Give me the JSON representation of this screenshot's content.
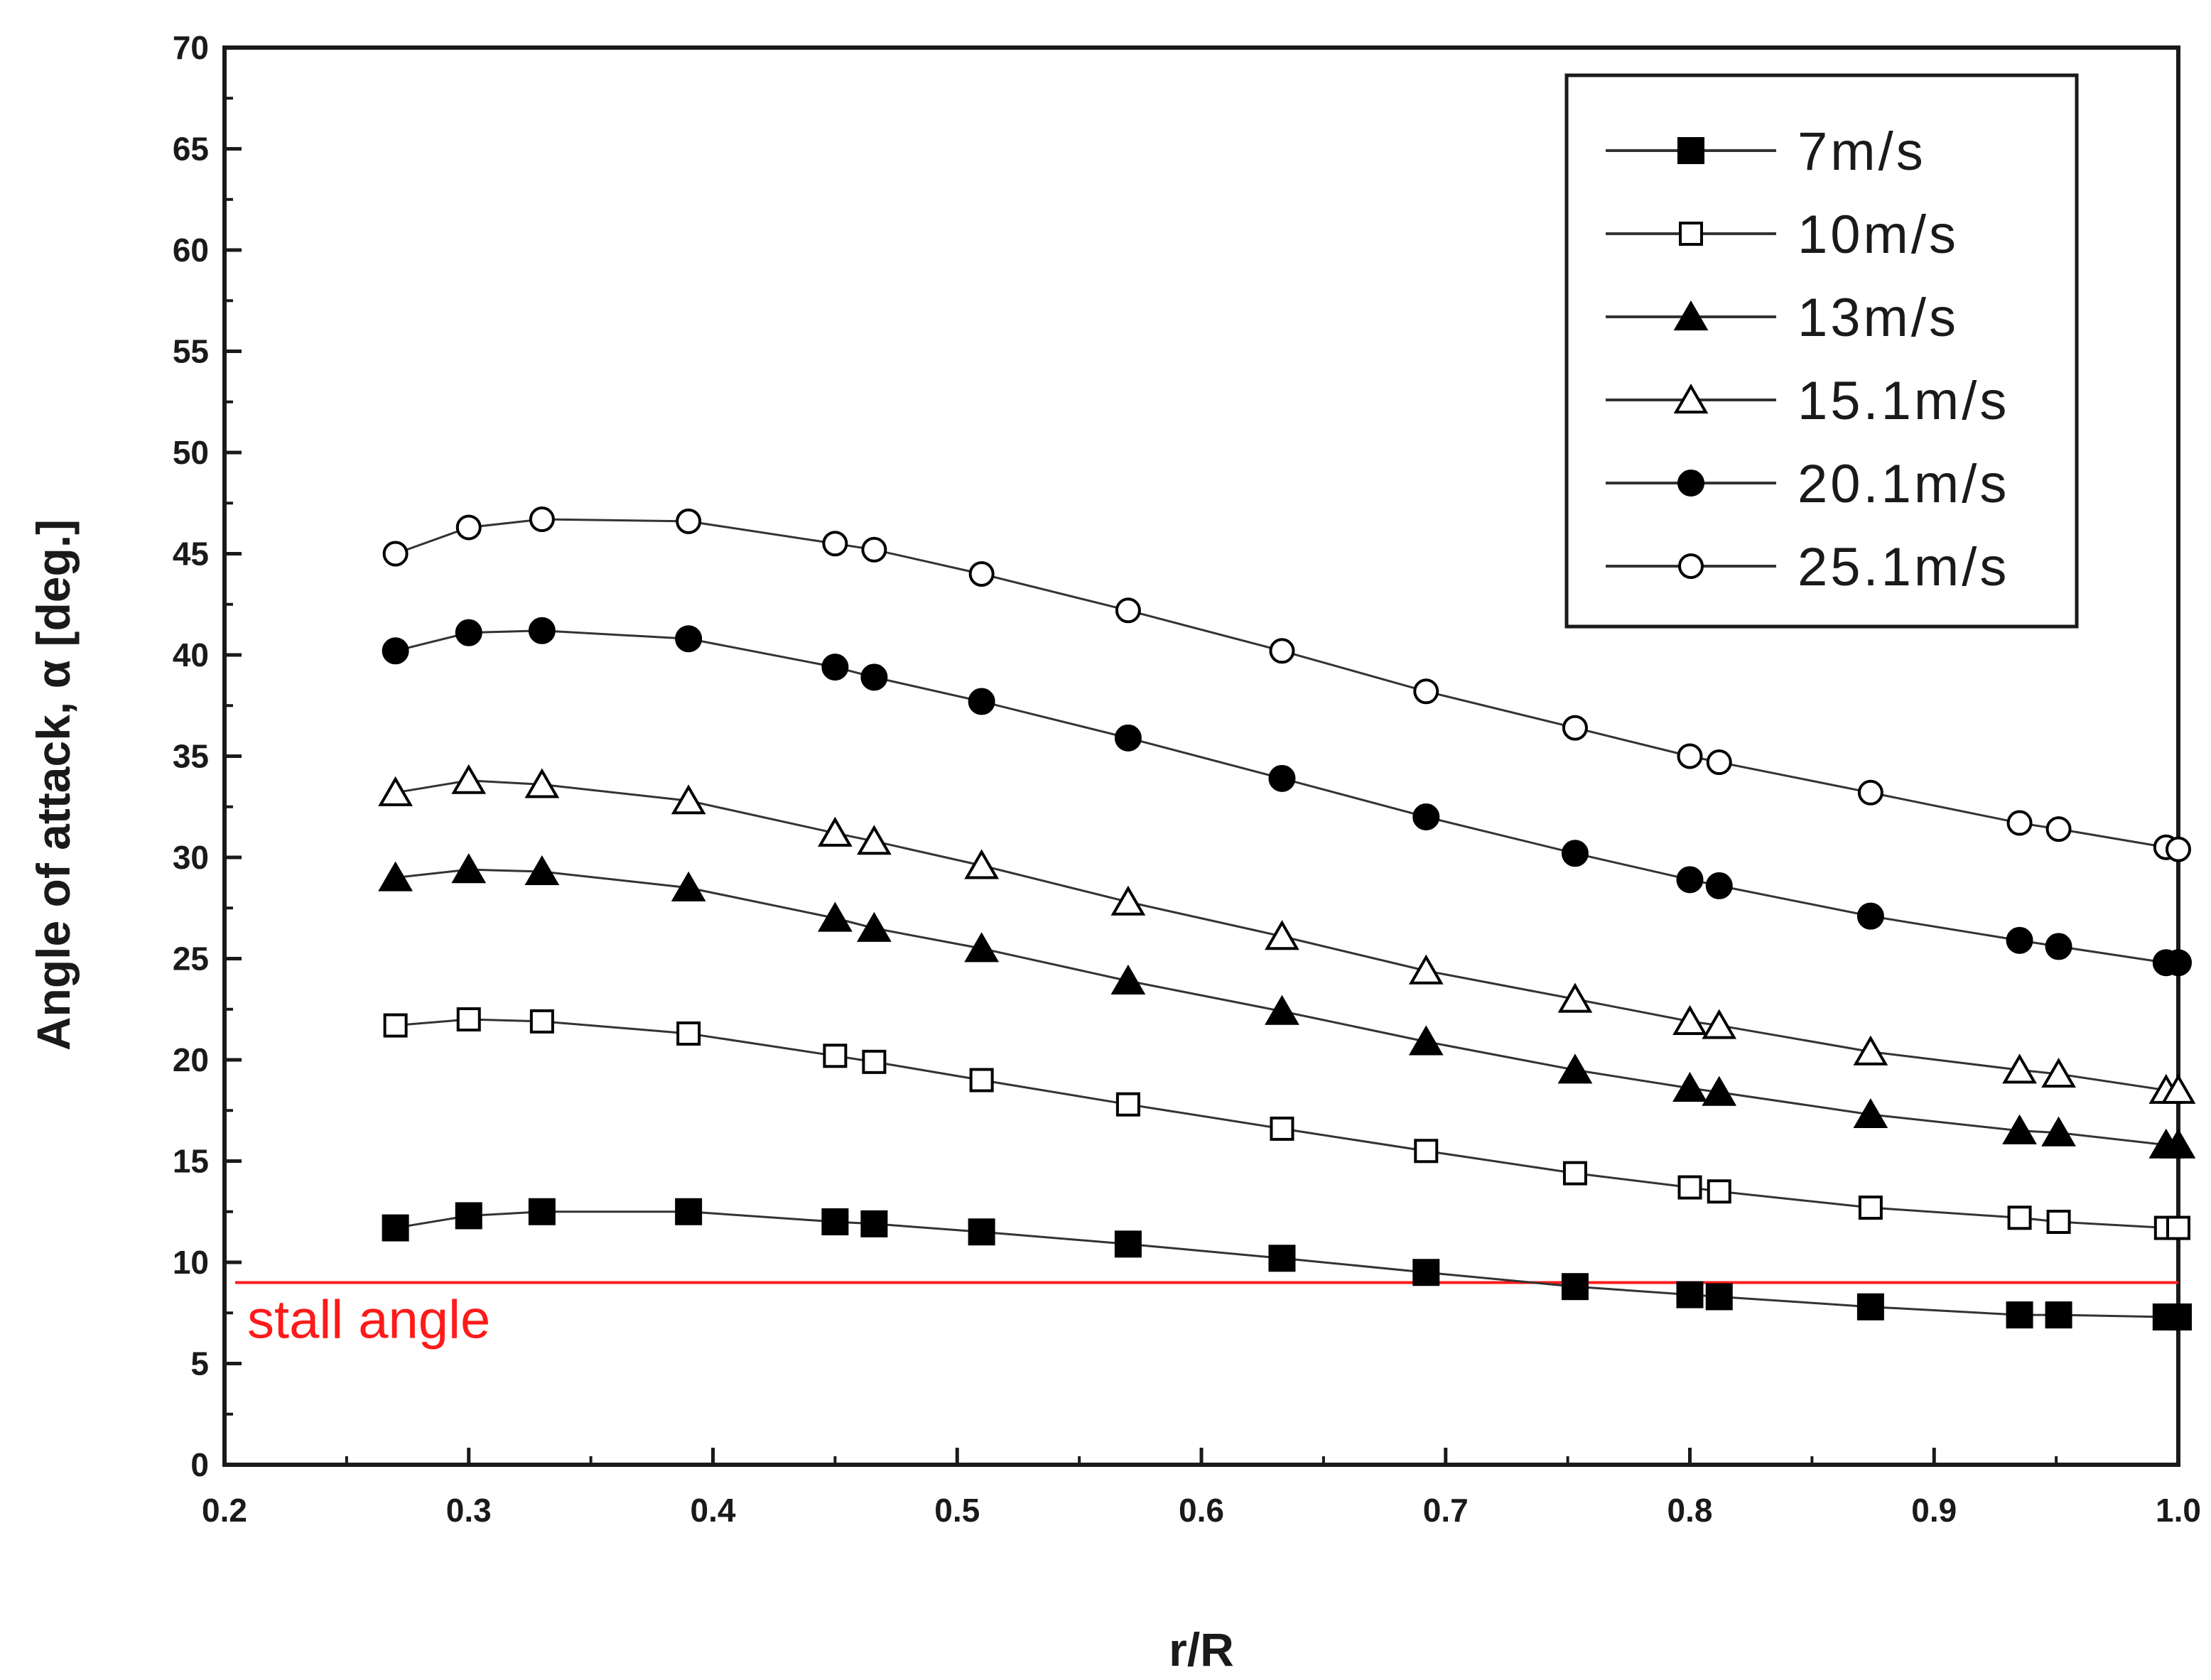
{
  "chart_data": {
    "type": "line",
    "title": "",
    "xlabel": "r/R",
    "ylabel": "Angle of attack, α  [deg.]",
    "xlim": [
      0.2,
      1.0
    ],
    "ylim": [
      0,
      70
    ],
    "x_ticks": [
      0.2,
      0.3,
      0.4,
      0.5,
      0.6,
      0.7,
      0.8,
      0.9,
      1.0
    ],
    "x_tick_labels": [
      "0.2",
      "0.3",
      "0.4",
      "0.5",
      "0.6",
      "0.7",
      "0.8",
      "0.9",
      "1.0"
    ],
    "y_ticks": [
      0,
      5,
      10,
      15,
      20,
      25,
      30,
      35,
      40,
      45,
      50,
      55,
      60,
      65,
      70
    ],
    "y_tick_labels": [
      "0",
      "5",
      "10",
      "15",
      "20",
      "25",
      "30",
      "35",
      "40",
      "45",
      "50",
      "55",
      "60",
      "65",
      "70"
    ],
    "grid": false,
    "legend_position": "top-right",
    "x": [
      0.27,
      0.3,
      0.33,
      0.39,
      0.45,
      0.466,
      0.51,
      0.57,
      0.633,
      0.692,
      0.753,
      0.8,
      0.812,
      0.874,
      0.935,
      0.951,
      0.995,
      1.0
    ],
    "series": [
      {
        "name": "7m/s",
        "marker": "square-filled",
        "values": [
          11.7,
          12.3,
          12.5,
          12.5,
          12.0,
          11.9,
          11.5,
          10.9,
          10.2,
          9.5,
          8.8,
          8.4,
          8.3,
          7.8,
          7.4,
          7.4,
          7.3,
          7.3
        ]
      },
      {
        "name": "10m/s",
        "marker": "square-open",
        "values": [
          21.7,
          22.0,
          21.9,
          21.3,
          20.2,
          19.9,
          19.0,
          17.8,
          16.6,
          15.5,
          14.4,
          13.7,
          13.5,
          12.7,
          12.2,
          12.0,
          11.7,
          11.7
        ]
      },
      {
        "name": "13m/s",
        "marker": "triangle-filled",
        "values": [
          29.0,
          29.4,
          29.3,
          28.5,
          27.0,
          26.5,
          25.5,
          23.9,
          22.4,
          20.9,
          19.5,
          18.6,
          18.4,
          17.3,
          16.5,
          16.4,
          15.8,
          15.8
        ]
      },
      {
        "name": "15.1m/s",
        "marker": "triangle-open",
        "values": [
          33.2,
          33.8,
          33.6,
          32.8,
          31.2,
          30.8,
          29.6,
          27.8,
          26.1,
          24.4,
          23.0,
          21.9,
          21.7,
          20.4,
          19.5,
          19.3,
          18.5,
          18.5
        ]
      },
      {
        "name": "20.1m/s",
        "marker": "circle-filled",
        "values": [
          40.2,
          41.1,
          41.2,
          40.8,
          39.4,
          38.9,
          37.7,
          35.9,
          33.9,
          32.0,
          30.2,
          28.9,
          28.6,
          27.1,
          25.9,
          25.6,
          24.8,
          24.8
        ]
      },
      {
        "name": "25.1m/s",
        "marker": "circle-open",
        "values": [
          45.0,
          46.3,
          46.7,
          46.6,
          45.5,
          45.2,
          44.0,
          42.2,
          40.2,
          38.2,
          36.4,
          35.0,
          34.7,
          33.2,
          31.7,
          31.4,
          30.5,
          30.4
        ]
      }
    ],
    "reference_line": {
      "label": "stall angle",
      "y": 9.0,
      "color": "#ff1a1a"
    }
  }
}
